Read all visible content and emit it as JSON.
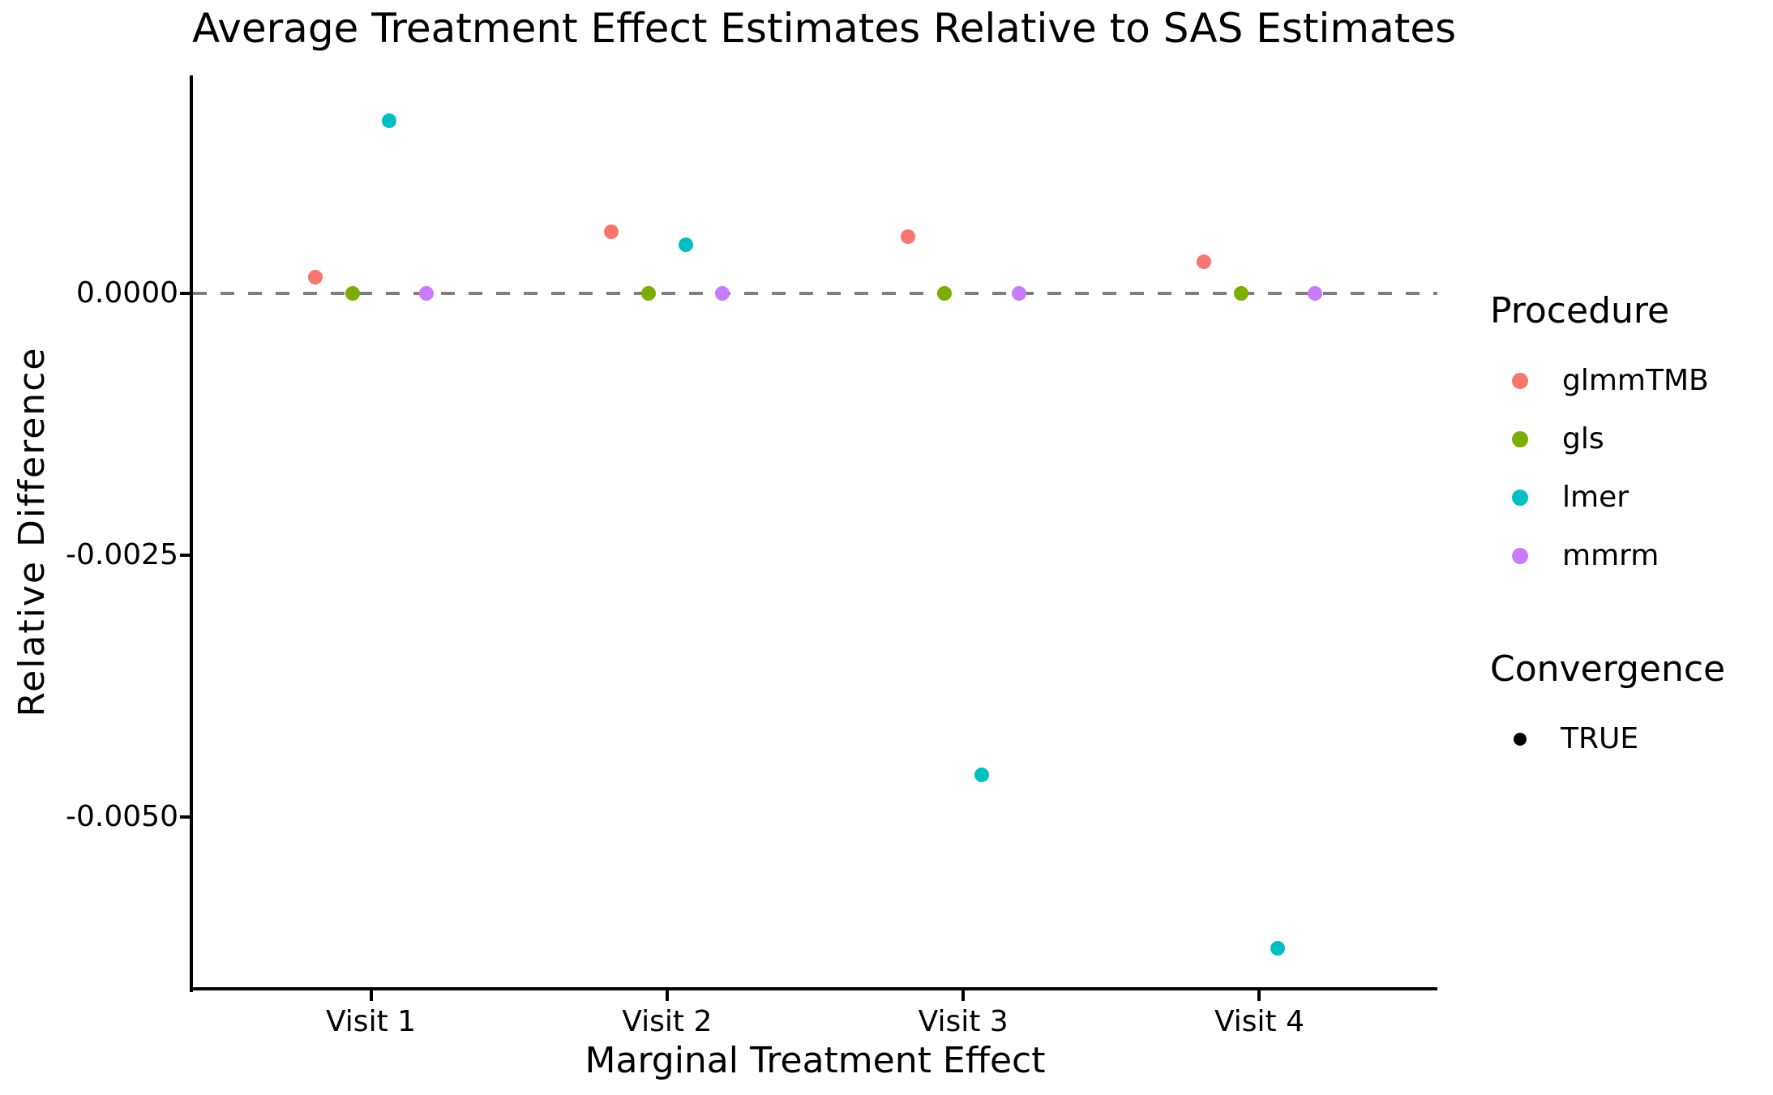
{
  "chart_data": {
    "type": "scatter",
    "title": "Average Treatment Effect Estimates Relative to SAS Estimates",
    "xlabel": "Marginal Treatment Effect",
    "ylabel": "Relative Difference",
    "categories": [
      "Visit 1",
      "Visit 2",
      "Visit 3",
      "Visit 4"
    ],
    "ylim": [
      -0.00664,
      0.00208
    ],
    "y_ticks": [
      {
        "value": 0.0,
        "label": "0.0000"
      },
      {
        "value": -0.0025,
        "label": "-0.0025"
      },
      {
        "value": -0.005,
        "label": "-0.0050"
      }
    ],
    "reference_line": {
      "value": 0.0,
      "style": "dashed",
      "color": "#7E7E7E"
    },
    "dodge_offsets": [
      -0.1875,
      -0.0625,
      0.0625,
      0.1875
    ],
    "series": [
      {
        "name": "glmmTMB",
        "color": "#F8766D",
        "values": [
          0.00015,
          0.00059,
          0.00054,
          0.0003
        ]
      },
      {
        "name": "gls",
        "color": "#7CAE00",
        "values": [
          0.0,
          0.0,
          0.0,
          0.0
        ]
      },
      {
        "name": "lmer",
        "color": "#00BFC4",
        "values": [
          0.00165,
          0.00046,
          -0.0046,
          -0.00625
        ]
      },
      {
        "name": "mmrm",
        "color": "#C77CFF",
        "values": [
          0.0,
          0.0,
          0.0,
          0.0
        ]
      }
    ],
    "legend_position": "right",
    "grid": false
  },
  "legend": {
    "procedure_title": "Procedure",
    "procedure_items": [
      {
        "label": "glmmTMB",
        "color": "#F8766D"
      },
      {
        "label": "gls",
        "color": "#7CAE00"
      },
      {
        "label": "lmer",
        "color": "#00BFC4"
      },
      {
        "label": "mmrm",
        "color": "#C77CFF"
      }
    ],
    "convergence_title": "Convergence",
    "convergence_items": [
      {
        "label": "TRUE",
        "color": "#000000"
      }
    ]
  },
  "colors": {
    "axis": "#000000",
    "dashed_reference": "#7E7E7E",
    "background": "#FFFFFF"
  }
}
